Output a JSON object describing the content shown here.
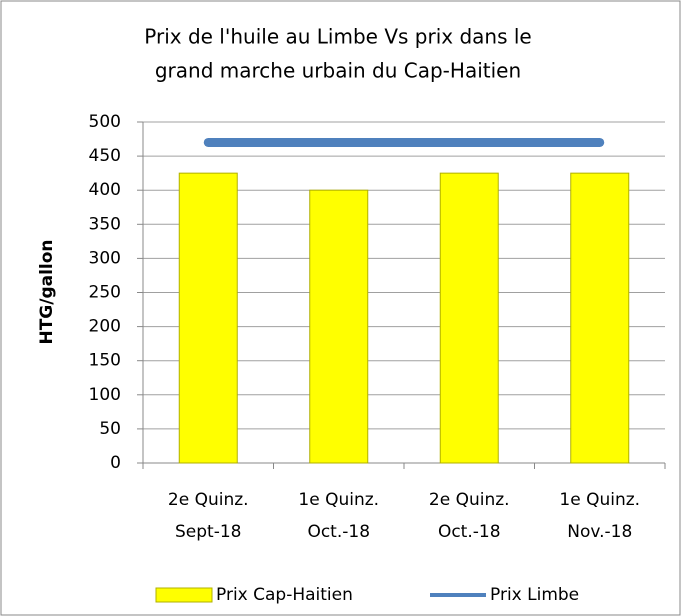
{
  "chart_data": {
    "type": "bar",
    "title": [
      "Prix de l'huile au Limbe Vs prix dans le",
      "grand marche urbain du Cap-Haitien"
    ],
    "y_label": "HTG/gallon",
    "categories": [
      [
        "2e Quinz.",
        "Sept-18"
      ],
      [
        "1e Quinz.",
        "Oct.-18"
      ],
      [
        "2e Quinz.",
        "Oct.-18"
      ],
      [
        "1e Quinz.",
        "Nov.-18"
      ]
    ],
    "series": [
      {
        "name": "Prix Cap-Haitien",
        "type": "bar",
        "color": "#ffff00",
        "values": [
          425,
          400,
          425,
          425
        ]
      },
      {
        "name": "Prix Limbe",
        "type": "line",
        "color": "#4f81bd",
        "values": [
          470,
          470,
          470,
          470
        ]
      }
    ],
    "ylim": [
      0,
      500
    ],
    "yticks": [
      0,
      50,
      100,
      150,
      200,
      250,
      300,
      350,
      400,
      450,
      500
    ],
    "grid": true,
    "legend": "bottom"
  }
}
